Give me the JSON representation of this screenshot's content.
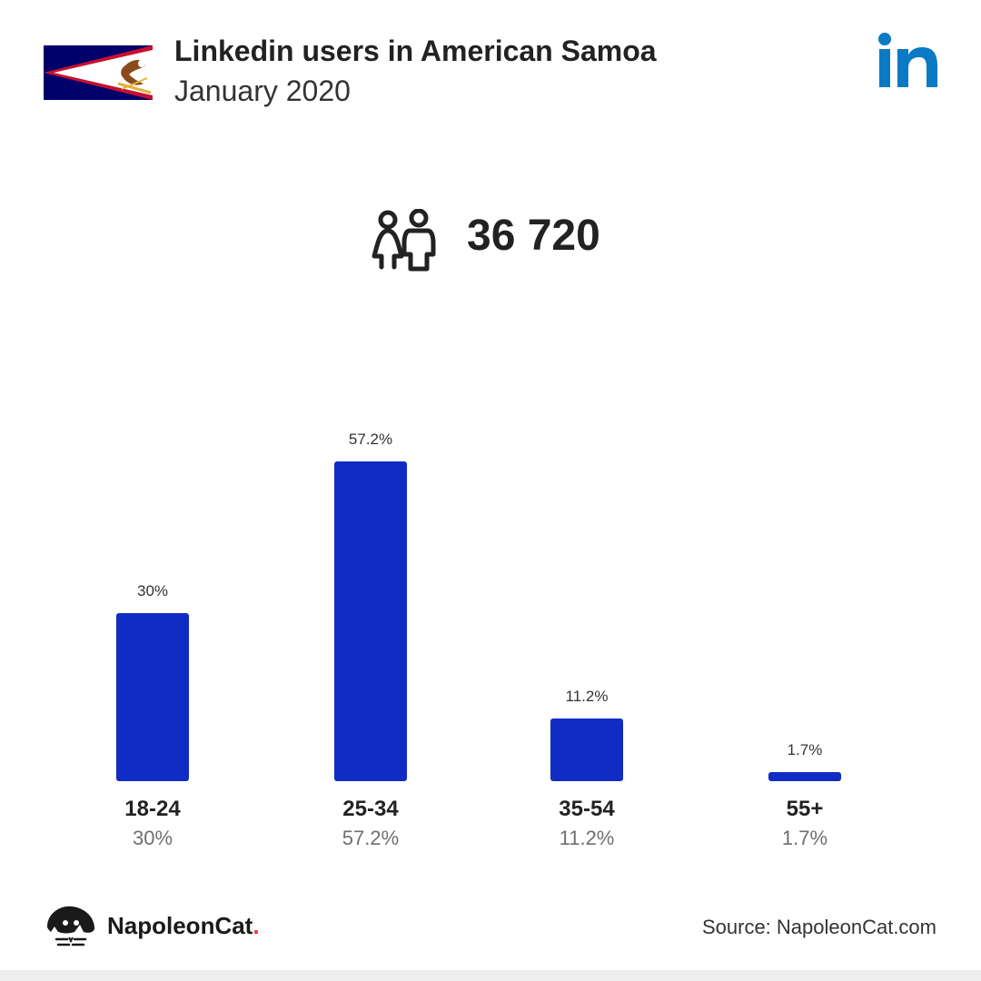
{
  "header": {
    "title": "Linkedin users in American Samoa",
    "subtitle": "January 2020"
  },
  "icons": {
    "flag": "american-samoa-flag-icon",
    "brand": "linkedin-icon",
    "users": "users-icon"
  },
  "summary": {
    "total_users": "36 720"
  },
  "colors": {
    "bar": "#102cc4",
    "linkedin": "#0a7ac4",
    "flag_blue": "#00006a",
    "flag_red": "#c8102e"
  },
  "chart_data": {
    "type": "bar",
    "categories": [
      "18-24",
      "25-34",
      "35-54",
      "55+"
    ],
    "values": [
      30,
      57.2,
      11.2,
      1.7
    ],
    "data_labels": [
      "30%",
      "57.2%",
      "11.2%",
      "1.7%"
    ],
    "title": "",
    "xlabel": "",
    "ylabel": "",
    "ylim": [
      0,
      57.2
    ],
    "grid": false
  },
  "footer": {
    "brand_name": "NapoleonCat",
    "brand_dot": ".",
    "source": "Source: NapoleonCat.com"
  }
}
